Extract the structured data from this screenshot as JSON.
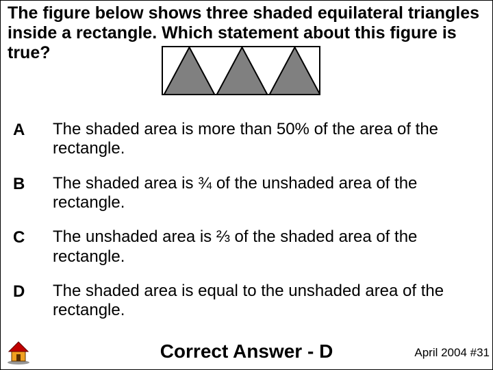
{
  "question": {
    "text": "The figure below shows three shaded equilateral triangles inside a rectangle.  Which statement about this figure is true?"
  },
  "figure": {
    "type": "triangles-in-rectangle",
    "rect_width": 232,
    "rect_height": 72,
    "triangle_count": 3,
    "triangle_base": 77,
    "triangle_height": 72,
    "triangle_fill": "#808080",
    "triangle_stroke": "#000000",
    "triangle_stroke_width": 2,
    "background_color": "#ffffff",
    "border_color": "#000000"
  },
  "options": {
    "items": [
      {
        "letter": "A",
        "text": "The shaded area is more than 50% of the area of the rectangle."
      },
      {
        "letter": "B",
        "text": "The shaded area is ¾ of the unshaded area of the rectangle."
      },
      {
        "letter": "C",
        "text": "The unshaded area is ⅔ of the shaded area of the rectangle."
      },
      {
        "letter": "D",
        "text": "The shaded area is equal to the unshaded area of the rectangle."
      }
    ]
  },
  "answer": {
    "label": "Correct Answer - D"
  },
  "source": {
    "label": "April 2004 #31"
  },
  "home_icon": {
    "roof_color": "#c00000",
    "wall_color": "#f0a020",
    "shadow_color": "#303030"
  }
}
